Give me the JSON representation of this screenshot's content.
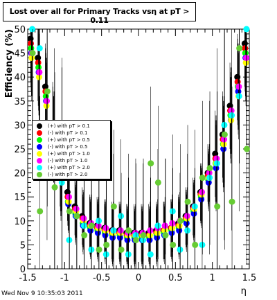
{
  "title": "Lost over all for Primary Tracks vsη at pT > 0.11",
  "footer": "Wed Nov  9 10:35:03 2011",
  "legend": [
    {
      "label": "(+) with pT > 0.1",
      "color": "#000000"
    },
    {
      "label": "(-) with pT > 0.1",
      "color": "#ff0000"
    },
    {
      "label": "(+) with pT > 0.5",
      "color": "#00ff00"
    },
    {
      "label": "(-) with pT > 0.5",
      "color": "#0000ff"
    },
    {
      "label": "(+) with pT > 1.0",
      "color": "#ffff00"
    },
    {
      "label": "(-) with pT > 1.0",
      "color": "#ff00ff"
    },
    {
      "label": "(+) with pT > 2.0",
      "color": "#00ffff"
    },
    {
      "label": "(-) with pT > 2.0",
      "color": "#66cc33"
    }
  ],
  "chart_data": {
    "type": "scatter",
    "title": "Lost over all for Primary Tracks vsη at pT > 0.11",
    "xlabel": "η",
    "ylabel": "Efficiency (%)",
    "xlim": [
      -1.5,
      1.5
    ],
    "ylim": [
      0,
      50
    ],
    "x_ticks": [
      "-1.5",
      "-1",
      "-0.5",
      "0",
      "0.5",
      "1",
      "1.5"
    ],
    "y_ticks": [
      "0",
      "5",
      "10",
      "15",
      "20",
      "25",
      "30",
      "35",
      "40",
      "45",
      "50"
    ],
    "series": [
      {
        "name": "(+) with pT > 0.1",
        "color": "#000000",
        "x": [
          -1.45,
          -1.35,
          -1.25,
          -1.15,
          -1.05,
          -0.95,
          -0.85,
          -0.75,
          -0.65,
          -0.55,
          -0.45,
          -0.35,
          -0.25,
          -0.15,
          -0.05,
          0.05,
          0.15,
          0.25,
          0.35,
          0.45,
          0.55,
          0.65,
          0.75,
          0.85,
          0.95,
          1.05,
          1.15,
          1.25,
          1.35,
          1.45
        ],
        "y": [
          48,
          44,
          38,
          30,
          22,
          16,
          13,
          11,
          9.5,
          9,
          8.5,
          8,
          8,
          7.5,
          7.5,
          7.5,
          7.5,
          8,
          8,
          8.5,
          9.5,
          11,
          13,
          16,
          20,
          24,
          28,
          34,
          40,
          47
        ]
      },
      {
        "name": "(-) with pT > 0.1",
        "color": "#ff0000",
        "x": [
          -1.45,
          -1.35,
          -1.25,
          -1.15,
          -1.05,
          -0.95,
          -0.85,
          -0.75,
          -0.65,
          -0.55,
          -0.45,
          -0.35,
          -0.25,
          -0.15,
          -0.05,
          0.05,
          0.15,
          0.25,
          0.35,
          0.45,
          0.55,
          0.65,
          0.75,
          0.85,
          0.95,
          1.05,
          1.15,
          1.25,
          1.35,
          1.45
        ],
        "y": [
          47,
          43,
          37,
          29,
          21,
          15,
          12.5,
          10.5,
          9,
          8.5,
          8,
          7.5,
          7.5,
          7,
          7,
          7,
          7,
          7.5,
          8,
          8.5,
          9,
          10.5,
          12.5,
          15.5,
          19.5,
          23,
          27,
          33,
          39,
          46
        ]
      },
      {
        "name": "(+) with pT > 0.5",
        "color": "#00ff00",
        "x": [
          -1.45,
          -1.35,
          -1.25,
          -1.15,
          -1.05,
          -0.95,
          -0.85,
          -0.75,
          -0.65,
          -0.55,
          -0.45,
          -0.35,
          -0.25,
          -0.15,
          -0.05,
          0.05,
          0.15,
          0.25,
          0.35,
          0.45,
          0.55,
          0.65,
          0.75,
          0.85,
          0.95,
          1.05,
          1.15,
          1.25,
          1.35,
          1.45
        ],
        "y": [
          46,
          42,
          36,
          28,
          20,
          14,
          11.5,
          9.5,
          8.5,
          8,
          7.5,
          7,
          7,
          6.5,
          6.5,
          6.5,
          6.5,
          7,
          7.5,
          8,
          8.5,
          10,
          12,
          15,
          18.5,
          22,
          26,
          32,
          38,
          45
        ]
      },
      {
        "name": "(-) with pT > 0.5",
        "color": "#0000ff",
        "x": [
          -1.45,
          -1.35,
          -1.25,
          -1.15,
          -1.05,
          -0.95,
          -0.85,
          -0.75,
          -0.65,
          -0.55,
          -0.45,
          -0.35,
          -0.25,
          -0.15,
          -0.05,
          0.05,
          0.15,
          0.25,
          0.35,
          0.45,
          0.55,
          0.65,
          0.75,
          0.85,
          0.95,
          1.05,
          1.15,
          1.25,
          1.35,
          1.45
        ],
        "y": [
          45,
          41,
          35,
          27,
          19,
          13.5,
          11,
          9,
          8,
          7.5,
          7,
          6.5,
          6.5,
          6,
          6,
          6,
          6,
          6.5,
          7,
          7.5,
          8,
          9.5,
          11.5,
          14.5,
          18,
          21,
          25,
          31,
          37,
          44
        ]
      },
      {
        "name": "(+) with pT > 1.0",
        "color": "#ffff00",
        "x": [
          -1.45,
          -1.35,
          -1.25,
          -1.15,
          -1.05,
          -0.95,
          -0.85,
          -0.75,
          -0.65,
          -0.55,
          -0.45,
          -0.35,
          -0.25,
          -0.15,
          -0.05,
          0.05,
          0.15,
          0.25,
          0.35,
          0.45,
          0.55,
          0.65,
          0.75,
          0.85,
          0.95,
          1.05,
          1.15,
          1.25,
          1.35,
          1.45
        ],
        "y": [
          44,
          40,
          34,
          27,
          20,
          14,
          12,
          10,
          9,
          8.5,
          8,
          7.5,
          7.5,
          7,
          7,
          7,
          7,
          7.5,
          8,
          8.5,
          9,
          10.5,
          12.5,
          15.5,
          19,
          22,
          26,
          31,
          36,
          43
        ]
      },
      {
        "name": "(-) with pT > 1.0",
        "color": "#ff00ff",
        "x": [
          -1.45,
          -1.35,
          -1.25,
          -1.15,
          -1.05,
          -0.95,
          -0.85,
          -0.75,
          -0.65,
          -0.55,
          -0.45,
          -0.35,
          -0.25,
          -0.15,
          -0.05,
          0.05,
          0.15,
          0.25,
          0.35,
          0.45,
          0.55,
          0.65,
          0.75,
          0.85,
          0.95,
          1.05,
          1.15,
          1.25,
          1.35,
          1.45
        ],
        "y": [
          45,
          41,
          35,
          28,
          21,
          15,
          12.5,
          10.5,
          9.5,
          9,
          8.5,
          8,
          8,
          7.5,
          7.5,
          7.5,
          8,
          8.5,
          9,
          9.5,
          10,
          11,
          13,
          16,
          20,
          23,
          27,
          33,
          38,
          44
        ]
      },
      {
        "name": "(+) with pT > 2.0",
        "color": "#00ffff",
        "x": [
          -1.45,
          -1.35,
          -1.25,
          -1.15,
          -1.05,
          -0.95,
          -0.85,
          -0.75,
          -0.65,
          -0.55,
          -0.45,
          -0.35,
          -0.25,
          -0.15,
          -0.05,
          0.05,
          0.15,
          0.25,
          0.35,
          0.45,
          0.55,
          0.65,
          0.75,
          0.85,
          0.95,
          1.05,
          1.15,
          1.25,
          1.35,
          1.45
        ],
        "y": [
          50,
          46,
          30,
          22,
          18,
          6,
          11,
          9,
          4,
          10,
          3,
          8,
          11,
          3,
          7,
          6,
          3,
          9,
          7,
          12,
          4,
          8,
          13,
          5,
          19,
          22,
          30,
          32,
          36,
          50
        ]
      },
      {
        "name": "(-) with pT > 2.0",
        "color": "#66cc33",
        "x": [
          -1.45,
          -1.35,
          -1.25,
          -1.15,
          -1.05,
          -0.95,
          -0.85,
          -0.75,
          -0.65,
          -0.55,
          -0.45,
          -0.35,
          -0.25,
          -0.15,
          -0.05,
          0.05,
          0.15,
          0.25,
          0.35,
          0.45,
          0.55,
          0.65,
          0.75,
          0.85,
          0.95,
          1.05,
          1.15,
          1.25,
          1.35,
          1.45
        ],
        "y": [
          45,
          12,
          37,
          17,
          20,
          12,
          11,
          7,
          9,
          4,
          5,
          13,
          4,
          8,
          6,
          7,
          22,
          18,
          7,
          5,
          10,
          14,
          5,
          19,
          21,
          13,
          28,
          14,
          46,
          25
        ]
      }
    ]
  }
}
